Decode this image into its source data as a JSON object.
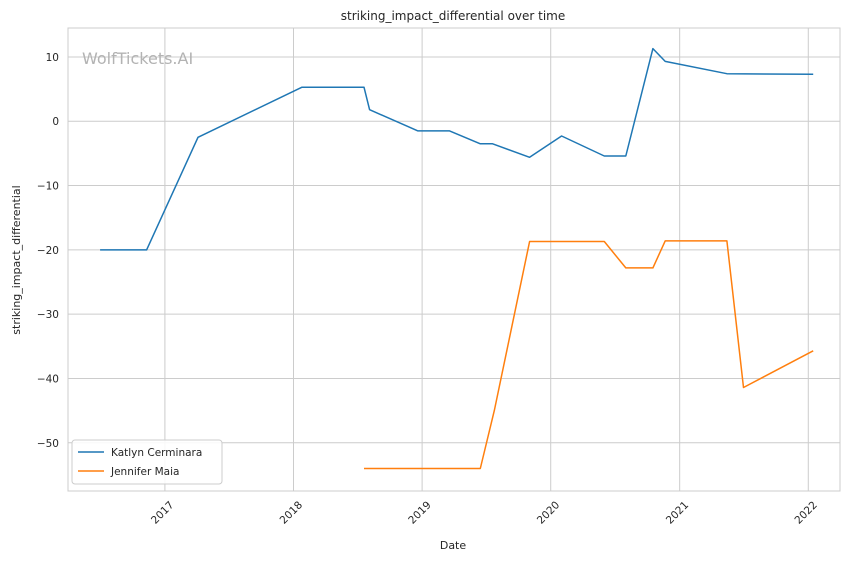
{
  "chart_data": {
    "type": "line",
    "title": "striking_impact_differential over time",
    "xlabel": "Date",
    "ylabel": "striking_impact_differential",
    "watermark": "WolfTickets.AI",
    "x_axis": "date",
    "xlim": [
      "2016-04-01",
      "2022-04-01"
    ],
    "ylim": [
      -57.5,
      14.5
    ],
    "x_ticks": [
      "2017-01-01",
      "2018-01-01",
      "2019-01-01",
      "2020-01-01",
      "2021-01-01",
      "2022-01-01"
    ],
    "x_tick_labels": [
      "2017",
      "2018",
      "2019",
      "2020",
      "2021",
      "2022"
    ],
    "y_ticks": [
      10,
      0,
      -10,
      -20,
      -30,
      -40,
      -50
    ],
    "y_tick_labels": [
      "10",
      "0",
      "−10",
      "−20",
      "−30",
      "−40",
      "−50"
    ],
    "grid": true,
    "legend_position": "lower-left",
    "series": [
      {
        "name": "Katlyn Cerminara",
        "color": "#1f77b4",
        "points": [
          [
            "2016-07-01",
            -20
          ],
          [
            "2016-11-10",
            -20
          ],
          [
            "2017-04-05",
            -2.5
          ],
          [
            "2018-01-25",
            5.3
          ],
          [
            "2018-07-20",
            5.3
          ],
          [
            "2018-08-05",
            1.8
          ],
          [
            "2018-12-20",
            -1.5
          ],
          [
            "2019-03-20",
            -1.5
          ],
          [
            "2019-06-15",
            -3.5
          ],
          [
            "2019-07-20",
            -3.5
          ],
          [
            "2019-11-02",
            -5.6
          ],
          [
            "2020-02-01",
            -2.3
          ],
          [
            "2020-06-01",
            -5.4
          ],
          [
            "2020-08-01",
            -5.4
          ],
          [
            "2020-10-17",
            11.3
          ],
          [
            "2020-11-21",
            9.3
          ],
          [
            "2021-05-15",
            7.4
          ],
          [
            "2022-01-15",
            7.3
          ]
        ]
      },
      {
        "name": "Jennifer Maia",
        "color": "#ff7f0e",
        "points": [
          [
            "2018-07-20",
            -54
          ],
          [
            "2019-06-15",
            -54
          ],
          [
            "2019-07-25",
            -45
          ],
          [
            "2019-11-02",
            -18.7
          ],
          [
            "2020-06-01",
            -18.7
          ],
          [
            "2020-08-01",
            -22.8
          ],
          [
            "2020-10-17",
            -22.8
          ],
          [
            "2020-11-21",
            -18.6
          ],
          [
            "2021-05-15",
            -18.6
          ],
          [
            "2021-07-01",
            -41.4
          ],
          [
            "2022-01-15",
            -35.7
          ]
        ]
      }
    ]
  }
}
